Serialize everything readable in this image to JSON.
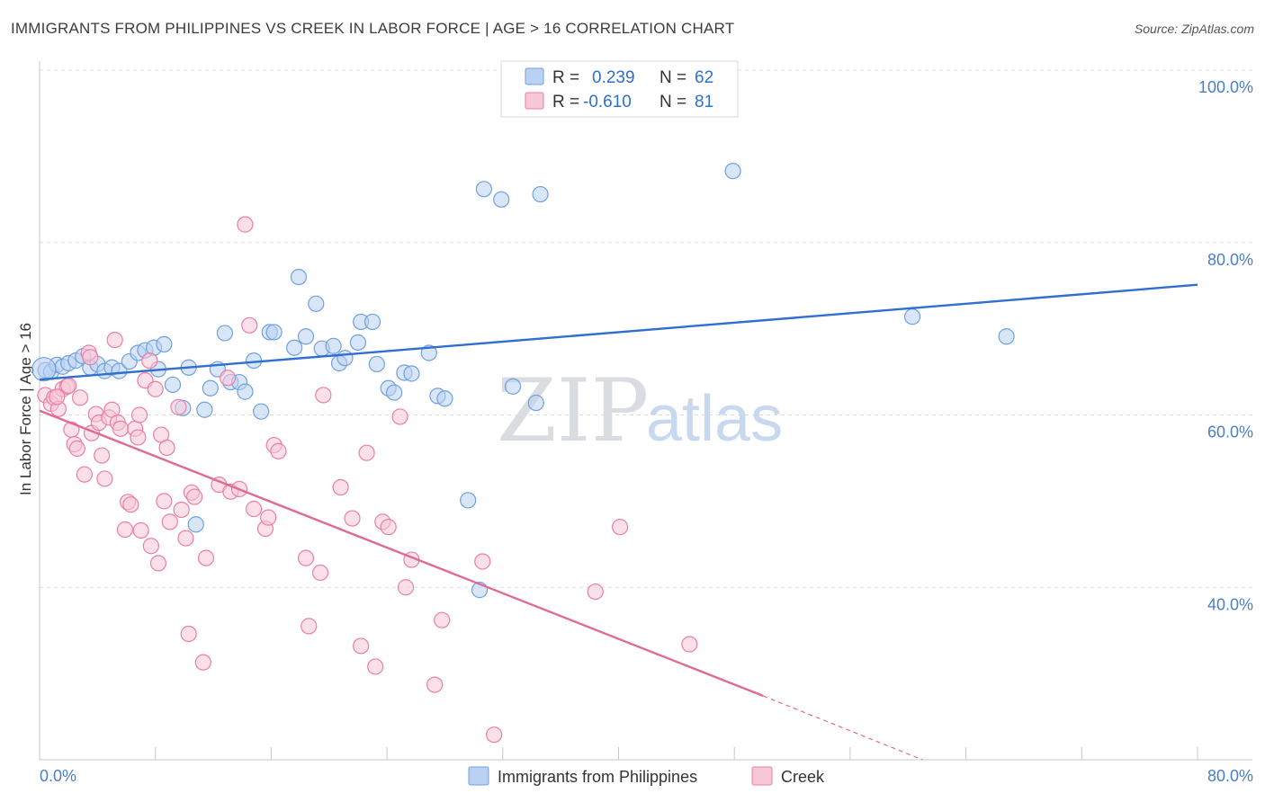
{
  "header": {
    "title": "IMMIGRANTS FROM PHILIPPINES VS CREEK IN LABOR FORCE | AGE > 16 CORRELATION CHART",
    "source": "Source: ZipAtlas.com"
  },
  "watermark": {
    "zip": "ZIP",
    "atlas": "atlas"
  },
  "legend": {
    "r_label": "R =",
    "n_label": "N =",
    "series": [
      {
        "r": "0.239",
        "n": "62",
        "color": "#8fb6e8"
      },
      {
        "r": "-0.610",
        "n": "81",
        "color": "#f0a5bf"
      }
    ]
  },
  "bottom_legend": [
    "Immigrants from Philippines",
    "Creek"
  ],
  "chart_data": {
    "type": "scatter",
    "ylabel": "In Labor Force | Age > 16",
    "xlim": [
      0,
      80
    ],
    "ylim": [
      20,
      100
    ],
    "x_tick_labels": [
      "0.0%",
      "80.0%"
    ],
    "y_ticks": [
      40,
      60,
      80,
      100
    ],
    "y_tick_labels": [
      "40.0%",
      "60.0%",
      "80.0%",
      "100.0%"
    ],
    "grid": true,
    "series": [
      {
        "name": "Immigrants from Philippines",
        "color": "#6fa0e0",
        "fill": "#b9d2f2",
        "trend": {
          "x0": 0,
          "y0": 64.1,
          "x1": 80,
          "y1": 75.1,
          "color": "#2f6fd0"
        },
        "points": [
          [
            0.4,
            65.2
          ],
          [
            0.8,
            65.0
          ],
          [
            1.2,
            65.8
          ],
          [
            1.6,
            65.6
          ],
          [
            2.0,
            66.0
          ],
          [
            2.5,
            66.3
          ],
          [
            3.0,
            66.8
          ],
          [
            3.5,
            65.5
          ],
          [
            4.0,
            65.9
          ],
          [
            4.5,
            65.1
          ],
          [
            5.0,
            65.5
          ],
          [
            5.5,
            65.1
          ],
          [
            6.2,
            66.2
          ],
          [
            6.8,
            67.2
          ],
          [
            7.3,
            67.5
          ],
          [
            7.9,
            67.8
          ],
          [
            8.2,
            65.3
          ],
          [
            8.6,
            68.2
          ],
          [
            9.2,
            63.5
          ],
          [
            9.9,
            60.8
          ],
          [
            10.3,
            65.5
          ],
          [
            10.8,
            47.3
          ],
          [
            11.4,
            60.6
          ],
          [
            11.8,
            63.1
          ],
          [
            12.3,
            65.3
          ],
          [
            12.8,
            69.5
          ],
          [
            13.2,
            63.8
          ],
          [
            13.8,
            63.8
          ],
          [
            14.2,
            62.7
          ],
          [
            14.8,
            66.3
          ],
          [
            15.3,
            60.4
          ],
          [
            15.9,
            69.6
          ],
          [
            16.2,
            69.6
          ],
          [
            17.6,
            67.8
          ],
          [
            17.9,
            76.0
          ],
          [
            18.4,
            69.1
          ],
          [
            19.1,
            72.9
          ],
          [
            19.5,
            67.7
          ],
          [
            20.3,
            68.0
          ],
          [
            20.7,
            66.0
          ],
          [
            21.1,
            66.6
          ],
          [
            22.0,
            68.4
          ],
          [
            22.2,
            70.8
          ],
          [
            23.0,
            70.8
          ],
          [
            23.3,
            65.9
          ],
          [
            24.1,
            63.1
          ],
          [
            24.5,
            62.6
          ],
          [
            25.2,
            64.9
          ],
          [
            25.7,
            64.8
          ],
          [
            26.9,
            67.2
          ],
          [
            27.5,
            62.2
          ],
          [
            28.0,
            61.9
          ],
          [
            29.6,
            50.1
          ],
          [
            30.4,
            39.7
          ],
          [
            30.7,
            86.2
          ],
          [
            31.9,
            85.0
          ],
          [
            32.7,
            63.3
          ],
          [
            34.3,
            61.4
          ],
          [
            34.6,
            85.6
          ],
          [
            47.9,
            88.3
          ],
          [
            60.3,
            71.4
          ],
          [
            66.8,
            69.1
          ]
        ]
      },
      {
        "name": "Creek",
        "color": "#eb7fa4",
        "fill": "#f7c7d7",
        "trend": {
          "x0": 0,
          "y0": 60.5,
          "x1": 50,
          "y1": 27.4,
          "color": "#e06a96",
          "dash_to_x": 61,
          "dash_to_y": 20
        },
        "points": [
          [
            0.4,
            62.3
          ],
          [
            0.8,
            61.3
          ],
          [
            1.0,
            62.0
          ],
          [
            1.3,
            60.7
          ],
          [
            1.6,
            63.0
          ],
          [
            1.9,
            63.3
          ],
          [
            2.2,
            58.3
          ],
          [
            2.4,
            56.6
          ],
          [
            2.6,
            56.1
          ],
          [
            2.8,
            62.0
          ],
          [
            3.1,
            53.1
          ],
          [
            3.4,
            67.2
          ],
          [
            3.6,
            57.9
          ],
          [
            3.9,
            60.1
          ],
          [
            4.1,
            59.1
          ],
          [
            4.3,
            55.3
          ],
          [
            4.5,
            52.6
          ],
          [
            4.8,
            59.7
          ],
          [
            5.0,
            60.6
          ],
          [
            5.2,
            68.7
          ],
          [
            5.4,
            59.1
          ],
          [
            5.6,
            58.4
          ],
          [
            5.9,
            46.7
          ],
          [
            6.1,
            49.9
          ],
          [
            6.3,
            49.6
          ],
          [
            6.6,
            58.4
          ],
          [
            6.8,
            57.4
          ],
          [
            7.0,
            46.6
          ],
          [
            7.3,
            64.0
          ],
          [
            7.6,
            66.3
          ],
          [
            7.7,
            44.8
          ],
          [
            8.0,
            63.0
          ],
          [
            8.2,
            42.8
          ],
          [
            8.4,
            57.7
          ],
          [
            8.6,
            50.0
          ],
          [
            8.8,
            56.2
          ],
          [
            9.0,
            47.6
          ],
          [
            9.6,
            60.9
          ],
          [
            9.8,
            49.0
          ],
          [
            10.1,
            45.7
          ],
          [
            10.3,
            34.6
          ],
          [
            10.5,
            51.0
          ],
          [
            10.7,
            50.5
          ],
          [
            11.3,
            31.3
          ],
          [
            11.5,
            43.4
          ],
          [
            12.4,
            51.9
          ],
          [
            13.0,
            64.3
          ],
          [
            13.2,
            51.1
          ],
          [
            13.8,
            51.4
          ],
          [
            14.2,
            82.1
          ],
          [
            14.5,
            70.4
          ],
          [
            14.8,
            49.1
          ],
          [
            15.6,
            46.8
          ],
          [
            15.8,
            48.1
          ],
          [
            16.2,
            56.5
          ],
          [
            16.5,
            55.8
          ],
          [
            18.4,
            43.4
          ],
          [
            18.6,
            35.5
          ],
          [
            19.4,
            41.7
          ],
          [
            19.6,
            62.3
          ],
          [
            20.8,
            51.6
          ],
          [
            21.6,
            48.0
          ],
          [
            22.2,
            33.2
          ],
          [
            22.6,
            55.6
          ],
          [
            23.2,
            30.8
          ],
          [
            23.7,
            47.6
          ],
          [
            24.1,
            47.0
          ],
          [
            24.9,
            59.8
          ],
          [
            25.3,
            40.0
          ],
          [
            25.7,
            43.2
          ],
          [
            27.3,
            28.7
          ],
          [
            27.8,
            36.2
          ],
          [
            30.6,
            43.0
          ],
          [
            31.4,
            22.9
          ],
          [
            38.4,
            39.5
          ],
          [
            40.1,
            47.0
          ],
          [
            44.9,
            33.4
          ],
          [
            1.2,
            62.1
          ],
          [
            2.0,
            63.4
          ],
          [
            3.5,
            66.7
          ],
          [
            6.9,
            60.0
          ]
        ]
      }
    ]
  }
}
